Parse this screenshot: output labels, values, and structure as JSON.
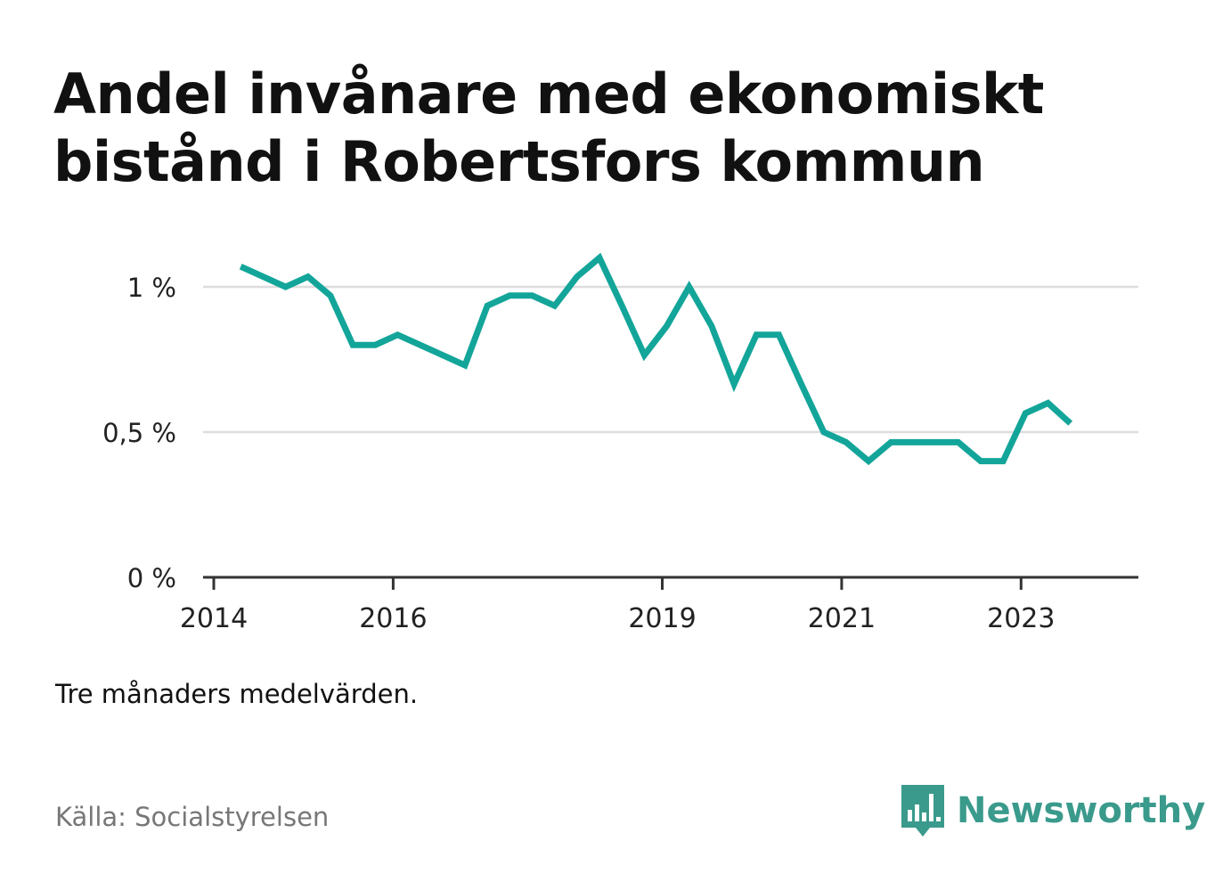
{
  "title": "Andel invånare med ekonomiskt bistånd i Robertsfors kommun",
  "note": "Tre månaders medelvärden.",
  "source": "Källa: Socialstyrelsen",
  "brand": {
    "name": "Newsworthy",
    "color": "#3a9a8c",
    "logo_icon": "bar-chart-speech-bubble-icon"
  },
  "chart_data": {
    "type": "line",
    "title": "Andel invånare med ekonomiskt bistånd i Robertsfors kommun",
    "xlabel": "",
    "ylabel": "",
    "line_color": "#13a59a",
    "gridlines": true,
    "y_unit": "%",
    "ylim": [
      0,
      1.1
    ],
    "xlim": [
      2014.0,
      2024.0
    ],
    "y_ticks": [
      {
        "value": 0,
        "label": "0 %"
      },
      {
        "value": 0.5,
        "label": "0,5 %"
      },
      {
        "value": 1,
        "label": "1 %"
      }
    ],
    "x_ticks": [
      {
        "value": 2014.0,
        "label": "2014"
      },
      {
        "value": 2016.0,
        "label": "2016"
      },
      {
        "value": 2019.0,
        "label": "2019"
      },
      {
        "value": 2021.0,
        "label": "2021"
      },
      {
        "value": 2023.0,
        "label": "2023"
      }
    ],
    "series": [
      {
        "name": "",
        "x": [
          2014.3,
          2014.55,
          2014.8,
          2015.05,
          2015.3,
          2015.55,
          2015.8,
          2016.05,
          2016.3,
          2016.55,
          2016.8,
          2017.05,
          2017.3,
          2017.55,
          2017.8,
          2018.05,
          2018.3,
          2018.55,
          2018.8,
          2019.05,
          2019.3,
          2019.55,
          2019.8,
          2020.05,
          2020.3,
          2020.55,
          2020.8,
          2021.05,
          2021.3,
          2021.55,
          2021.8,
          2022.05,
          2022.3,
          2022.55,
          2022.8,
          2023.05,
          2023.3,
          2023.55
        ],
        "values": [
          1.07,
          1.035,
          1.0,
          1.035,
          0.97,
          0.8,
          0.8,
          0.835,
          0.8,
          0.765,
          0.73,
          0.935,
          0.97,
          0.97,
          0.935,
          1.035,
          1.1,
          0.935,
          0.765,
          0.865,
          1.0,
          0.865,
          0.665,
          0.835,
          0.835,
          0.665,
          0.5,
          0.465,
          0.4,
          0.465,
          0.465,
          0.465,
          0.465,
          0.4,
          0.4,
          0.565,
          0.6,
          0.53
        ]
      }
    ]
  }
}
